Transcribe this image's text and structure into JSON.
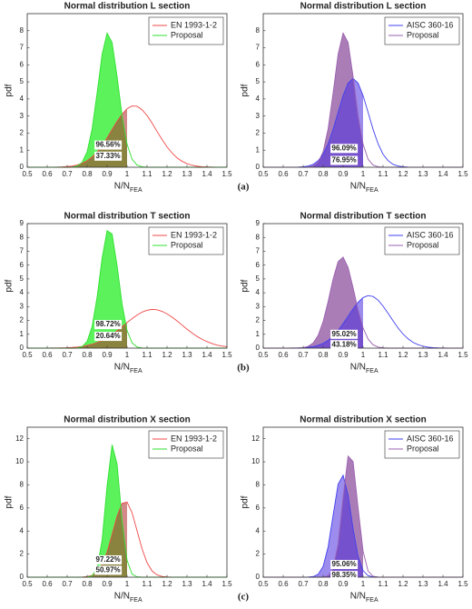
{
  "panel_labels": [
    "(a)",
    "(b)",
    "(c)"
  ],
  "chart_data": [
    {
      "type": "line",
      "title": "Normal distribution L  section",
      "xlabel": "N/N",
      "xlabel_sub": "FEA",
      "ylabel": "pdf",
      "legend": "upper right",
      "fill_below": 1,
      "xlim": [
        0.5,
        1.5
      ],
      "xticks": [
        0.5,
        0.6,
        0.7,
        0.8,
        0.9,
        1,
        1.1,
        1.2,
        1.3,
        1.4,
        1.5
      ],
      "ylim": [
        0,
        9
      ],
      "yticks": [
        0,
        1,
        2,
        3,
        4,
        5,
        6,
        7,
        8
      ],
      "x": [
        0.5,
        0.525,
        0.55,
        0.575,
        0.6,
        0.625,
        0.65,
        0.675,
        0.7,
        0.725,
        0.75,
        0.775,
        0.8,
        0.825,
        0.85,
        0.875,
        0.9,
        0.925,
        0.95,
        0.975,
        1,
        1.025,
        1.05,
        1.075,
        1.1,
        1.125,
        1.15,
        1.175,
        1.2,
        1.225,
        1.25,
        1.275,
        1.3,
        1.325,
        1.35,
        1.375,
        1.4,
        1.425,
        1.45,
        1.475,
        1.5
      ],
      "series": [
        {
          "name": "EN 1993-1-2",
          "color": "#f04848",
          "fill": "#b02828",
          "values": [
            0,
            0,
            0,
            0,
            0,
            0,
            0.01,
            0.02,
            0.04,
            0.07,
            0.13,
            0.23,
            0.38,
            0.6,
            0.9,
            1.27,
            1.72,
            2.21,
            2.69,
            3.11,
            3.43,
            3.59,
            3.57,
            3.37,
            3.03,
            2.59,
            2.1,
            1.63,
            1.19,
            0.84,
            0.55,
            0.35,
            0.21,
            0.12,
            0.06,
            0.03,
            0.02,
            0.01,
            0,
            0,
            0
          ]
        },
        {
          "name": "Proposal",
          "color": "#30e030",
          "fill": "#3ef03e",
          "values": [
            0,
            0,
            0,
            0,
            0,
            0,
            0,
            0,
            0,
            0.01,
            0.07,
            0.29,
            0.91,
            2.26,
            4.36,
            6.62,
            7.86,
            7.31,
            5.31,
            3.02,
            1.35,
            0.47,
            0.13,
            0.03,
            0,
            0,
            0,
            0,
            0,
            0,
            0,
            0,
            0,
            0,
            0,
            0,
            0,
            0,
            0,
            0,
            0
          ]
        }
      ],
      "annotations": [
        {
          "text": "96.56%",
          "color": "#22b022"
        },
        {
          "text": "37.33%",
          "color": "#e02828"
        }
      ]
    },
    {
      "type": "line",
      "title": "Normal distribution L  section",
      "xlabel": "N/N",
      "xlabel_sub": "FEA",
      "ylabel": "pdf",
      "legend": "upper right",
      "fill_below": 1,
      "xlim": [
        0.5,
        1.5
      ],
      "xticks": [
        0.5,
        0.6,
        0.7,
        0.8,
        0.9,
        1,
        1.1,
        1.2,
        1.3,
        1.4,
        1.5
      ],
      "ylim": [
        0,
        9
      ],
      "yticks": [
        0,
        1,
        2,
        3,
        4,
        5,
        6,
        7,
        8
      ],
      "x": [
        0.5,
        0.525,
        0.55,
        0.575,
        0.6,
        0.625,
        0.65,
        0.675,
        0.7,
        0.725,
        0.75,
        0.775,
        0.8,
        0.825,
        0.85,
        0.875,
        0.9,
        0.925,
        0.95,
        0.975,
        1,
        1.025,
        1.05,
        1.075,
        1.1,
        1.125,
        1.15,
        1.175,
        1.2,
        1.225,
        1.25,
        1.275,
        1.3,
        1.325,
        1.35,
        1.375,
        1.4,
        1.425,
        1.45,
        1.475,
        1.5
      ],
      "series": [
        {
          "name": "AISC 360-16",
          "color": "#4040f0",
          "fill": "#4a2ee0",
          "values": [
            0,
            0,
            0,
            0,
            0,
            0,
            0,
            0.01,
            0.03,
            0.07,
            0.17,
            0.39,
            0.76,
            1.38,
            2.22,
            3.22,
            4.2,
            4.93,
            5.2,
            4.93,
            4.2,
            3.22,
            2.22,
            1.38,
            0.76,
            0.39,
            0.17,
            0.07,
            0.03,
            0.01,
            0,
            0,
            0,
            0,
            0,
            0,
            0,
            0,
            0,
            0,
            0
          ]
        },
        {
          "name": "Proposal",
          "color": "#9a60b0",
          "fill": "#9c66aa",
          "values": [
            0,
            0,
            0,
            0,
            0,
            0,
            0,
            0,
            0,
            0.01,
            0.07,
            0.29,
            0.91,
            2.26,
            4.36,
            6.62,
            7.86,
            7.31,
            5.31,
            3.02,
            1.35,
            0.47,
            0.13,
            0.03,
            0,
            0,
            0,
            0,
            0,
            0,
            0,
            0,
            0,
            0,
            0,
            0,
            0,
            0,
            0,
            0,
            0
          ]
        }
      ],
      "annotations": [
        {
          "text": "96.09%",
          "color": "#8a3aa0"
        },
        {
          "text": "76.95%",
          "color": "#2a2ae0"
        }
      ]
    },
    {
      "type": "line",
      "title": "Normal distribution T  section",
      "xlabel": "N/N",
      "xlabel_sub": "FEA",
      "ylabel": "pdf",
      "legend": "upper right",
      "fill_below": 1,
      "xlim": [
        0.5,
        1.5
      ],
      "xticks": [
        0.5,
        0.6,
        0.7,
        0.8,
        0.9,
        1,
        1.1,
        1.2,
        1.3,
        1.4,
        1.5
      ],
      "ylim": [
        0,
        9
      ],
      "yticks": [
        0,
        1,
        2,
        3,
        4,
        5,
        6,
        7,
        8,
        9
      ],
      "x": [
        0.5,
        0.525,
        0.55,
        0.575,
        0.6,
        0.625,
        0.65,
        0.675,
        0.7,
        0.725,
        0.75,
        0.775,
        0.8,
        0.825,
        0.85,
        0.875,
        0.9,
        0.925,
        0.95,
        0.975,
        1,
        1.025,
        1.05,
        1.075,
        1.1,
        1.125,
        1.15,
        1.175,
        1.2,
        1.225,
        1.25,
        1.275,
        1.3,
        1.325,
        1.35,
        1.375,
        1.4,
        1.425,
        1.45,
        1.475,
        1.5
      ],
      "series": [
        {
          "name": "EN 1993-1-2",
          "color": "#f04848",
          "fill": "#b02828",
          "values": [
            0,
            0,
            0,
            0,
            0,
            0.01,
            0.01,
            0.02,
            0.03,
            0.05,
            0.08,
            0.13,
            0.19,
            0.28,
            0.41,
            0.57,
            0.76,
            0.99,
            1.26,
            1.55,
            1.85,
            2.13,
            2.39,
            2.6,
            2.74,
            2.8,
            2.77,
            2.66,
            2.48,
            2.24,
            1.97,
            1.67,
            1.37,
            1.1,
            0.85,
            0.64,
            0.47,
            0.33,
            0.22,
            0.15,
            0.1
          ]
        },
        {
          "name": "Proposal",
          "color": "#30e030",
          "fill": "#3ef03e",
          "values": [
            0,
            0,
            0,
            0,
            0,
            0,
            0,
            0,
            0,
            0,
            0.02,
            0.11,
            0.49,
            1.57,
            3.7,
            6.5,
            8.49,
            8.25,
            5.95,
            3.19,
            1.27,
            0.38,
            0.08,
            0.01,
            0,
            0,
            0,
            0,
            0,
            0,
            0,
            0,
            0,
            0,
            0,
            0,
            0,
            0,
            0,
            0,
            0
          ]
        }
      ],
      "annotations": [
        {
          "text": "98.72%",
          "color": "#22b022"
        },
        {
          "text": "20.64%",
          "color": "#e02828"
        }
      ]
    },
    {
      "type": "line",
      "title": "Normal distribution T  section",
      "xlabel": "N/N",
      "xlabel_sub": "FEA",
      "ylabel": "pdf",
      "legend": "upper right",
      "fill_below": 1,
      "xlim": [
        0.5,
        1.5
      ],
      "xticks": [
        0.5,
        0.6,
        0.7,
        0.8,
        0.9,
        1,
        1.1,
        1.2,
        1.3,
        1.4,
        1.5
      ],
      "ylim": [
        0,
        9
      ],
      "yticks": [
        0,
        1,
        2,
        3,
        4,
        5,
        6,
        7,
        8,
        9
      ],
      "x": [
        0.5,
        0.525,
        0.55,
        0.575,
        0.6,
        0.625,
        0.65,
        0.675,
        0.7,
        0.725,
        0.75,
        0.775,
        0.8,
        0.825,
        0.85,
        0.875,
        0.9,
        0.925,
        0.95,
        0.975,
        1,
        1.025,
        1.05,
        1.075,
        1.1,
        1.125,
        1.15,
        1.175,
        1.2,
        1.225,
        1.25,
        1.275,
        1.3,
        1.325,
        1.35,
        1.375,
        1.4,
        1.425,
        1.45,
        1.475,
        1.5
      ],
      "series": [
        {
          "name": "AISC 360-16",
          "color": "#4040f0",
          "fill": "#4a2ee0",
          "values": [
            0,
            0,
            0,
            0,
            0,
            0,
            0.01,
            0.01,
            0.03,
            0.06,
            0.11,
            0.2,
            0.34,
            0.56,
            0.87,
            1.28,
            1.77,
            2.3,
            2.84,
            3.31,
            3.65,
            3.8,
            3.73,
            3.47,
            3.04,
            2.52,
            1.98,
            1.46,
            1.02,
            0.68,
            0.42,
            0.25,
            0.14,
            0.07,
            0.04,
            0.02,
            0.01,
            0,
            0,
            0,
            0
          ]
        },
        {
          "name": "Proposal",
          "color": "#9a60b0",
          "fill": "#9c66aa",
          "values": [
            0,
            0,
            0,
            0,
            0,
            0,
            0,
            0.01,
            0.04,
            0.13,
            0.37,
            0.92,
            1.92,
            3.37,
            5.0,
            6.25,
            6.58,
            5.83,
            4.36,
            2.75,
            1.46,
            0.66,
            0.24,
            0.08,
            0.02,
            0,
            0,
            0,
            0,
            0,
            0,
            0,
            0,
            0,
            0,
            0,
            0,
            0,
            0,
            0,
            0
          ]
        }
      ],
      "annotations": [
        {
          "text": "95.02%",
          "color": "#8a3aa0"
        },
        {
          "text": "43.18%",
          "color": "#2a2ae0"
        }
      ]
    },
    {
      "type": "line",
      "title": "Normal distribution X  section",
      "xlabel": "N/N",
      "xlabel_sub": "FEA",
      "ylabel": "pdf",
      "legend": "upper right",
      "fill_below": 1,
      "xlim": [
        0.5,
        1.5
      ],
      "xticks": [
        0.5,
        0.6,
        0.7,
        0.8,
        0.9,
        1,
        1.1,
        1.2,
        1.3,
        1.4,
        1.5
      ],
      "ylim": [
        0,
        13
      ],
      "yticks": [
        0,
        2,
        4,
        6,
        8,
        10,
        12
      ],
      "x": [
        0.5,
        0.525,
        0.55,
        0.575,
        0.6,
        0.625,
        0.65,
        0.675,
        0.7,
        0.725,
        0.75,
        0.775,
        0.8,
        0.825,
        0.85,
        0.875,
        0.9,
        0.925,
        0.95,
        0.975,
        1,
        1.025,
        1.05,
        1.075,
        1.1,
        1.125,
        1.15,
        1.175,
        1.2,
        1.225,
        1.25,
        1.275,
        1.3,
        1.325,
        1.35,
        1.375,
        1.4,
        1.425,
        1.45,
        1.475,
        1.5
      ],
      "series": [
        {
          "name": "EN 1993-1-2",
          "color": "#f04848",
          "fill": "#b02828",
          "values": [
            0,
            0,
            0,
            0,
            0,
            0,
            0,
            0,
            0,
            0,
            0,
            0.01,
            0.05,
            0.16,
            0.45,
            1.08,
            2.18,
            3.7,
            5.3,
            6.4,
            6.51,
            5.58,
            4.03,
            2.45,
            1.26,
            0.54,
            0.2,
            0.06,
            0.02,
            0,
            0,
            0,
            0,
            0,
            0,
            0,
            0,
            0,
            0,
            0,
            0
          ]
        },
        {
          "name": "Proposal",
          "color": "#30e030",
          "fill": "#3ef03e",
          "values": [
            0,
            0,
            0,
            0,
            0,
            0,
            0,
            0,
            0,
            0,
            0,
            0,
            0.01,
            0.11,
            0.78,
            3.22,
            7.93,
            11.48,
            9.8,
            4.93,
            1.46,
            0.26,
            0.03,
            0,
            0,
            0,
            0,
            0,
            0,
            0,
            0,
            0,
            0,
            0,
            0,
            0,
            0,
            0,
            0,
            0,
            0
          ]
        }
      ],
      "annotations": [
        {
          "text": "97.22%",
          "color": "#22b022"
        },
        {
          "text": "50.97%",
          "color": "#e02828"
        }
      ]
    },
    {
      "type": "line",
      "title": "Normal distribution X  section",
      "xlabel": "N/N",
      "xlabel_sub": "FEA",
      "ylabel": "pdf",
      "legend": "upper right",
      "fill_below": 1,
      "xlim": [
        0.5,
        1.5
      ],
      "xticks": [
        0.5,
        0.6,
        0.7,
        0.8,
        0.9,
        1,
        1.1,
        1.2,
        1.3,
        1.4,
        1.5
      ],
      "ylim": [
        0,
        13
      ],
      "yticks": [
        0,
        2,
        4,
        6,
        8,
        10,
        12
      ],
      "x": [
        0.5,
        0.525,
        0.55,
        0.575,
        0.6,
        0.625,
        0.65,
        0.675,
        0.7,
        0.725,
        0.75,
        0.775,
        0.8,
        0.825,
        0.85,
        0.875,
        0.9,
        0.925,
        0.95,
        0.975,
        1,
        1.025,
        1.05,
        1.075,
        1.1,
        1.125,
        1.15,
        1.175,
        1.2,
        1.225,
        1.25,
        1.275,
        1.3,
        1.325,
        1.35,
        1.375,
        1.4,
        1.425,
        1.45,
        1.475,
        1.5
      ],
      "series": [
        {
          "name": "AISC 360-16",
          "color": "#4040f0",
          "fill": "#4a2ee0",
          "values": [
            0,
            0,
            0,
            0,
            0,
            0,
            0,
            0,
            0,
            0.01,
            0.05,
            0.25,
            0.94,
            2.63,
            5.38,
            8.05,
            8.84,
            7.11,
            4.19,
            1.81,
            0.57,
            0.13,
            0.02,
            0,
            0,
            0,
            0,
            0,
            0,
            0,
            0,
            0,
            0,
            0,
            0,
            0,
            0,
            0,
            0,
            0,
            0
          ]
        },
        {
          "name": "Proposal",
          "color": "#9a60b0",
          "fill": "#9c66aa",
          "values": [
            0,
            0,
            0,
            0,
            0,
            0,
            0,
            0,
            0,
            0,
            0,
            0,
            0.01,
            0.12,
            0.73,
            2.85,
            6.9,
            10.5,
            10.02,
            6.0,
            2.25,
            0.53,
            0.08,
            0.01,
            0,
            0,
            0,
            0,
            0,
            0,
            0,
            0,
            0,
            0,
            0,
            0,
            0,
            0,
            0,
            0,
            0
          ]
        }
      ],
      "annotations": [
        {
          "text": "95.06%",
          "color": "#8a3aa0"
        },
        {
          "text": "98.35%",
          "color": "#2a2ae0"
        }
      ]
    }
  ]
}
